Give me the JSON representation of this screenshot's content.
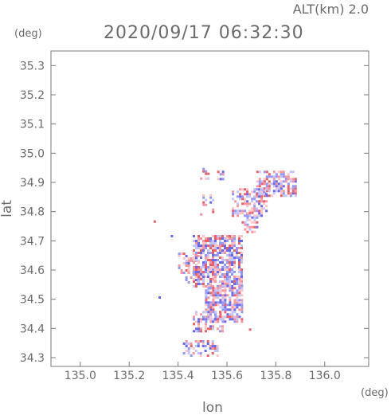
{
  "header": {
    "altitude_label": "ALT(km) 2.0",
    "timestamp": "2020/09/17 06:32:30"
  },
  "chart_data": {
    "type": "heatmap",
    "title": "2020/09/17 06:32:30",
    "xlabel": "lon",
    "ylabel": "lat",
    "x_unit": "(deg)",
    "y_unit": "(deg)",
    "xlim": [
      134.88,
      136.18
    ],
    "ylim": [
      34.27,
      35.35
    ],
    "x_ticks": [
      135.0,
      135.2,
      135.4,
      135.6,
      135.8,
      136.0
    ],
    "x_tick_labels": [
      "135.0",
      "135.2",
      "135.4",
      "135.6",
      "135.8",
      "136.0"
    ],
    "y_ticks": [
      34.3,
      34.4,
      34.5,
      34.6,
      34.7,
      34.8,
      34.9,
      35.0,
      35.1,
      35.2,
      35.3
    ],
    "y_tick_labels": [
      "34.3",
      "34.4",
      "34.5",
      "34.6",
      "34.7",
      "34.8",
      "34.9",
      "35.0",
      "35.1",
      "35.2",
      "35.3"
    ],
    "grid": false,
    "colors": {
      "positive": "#e8606a",
      "negative": "#6a6ae8",
      "axis": "#7a7a7a"
    },
    "echo_regions": [
      {
        "lon": [
          135.49,
          135.52
        ],
        "lat": [
          34.91,
          34.95
        ],
        "density": 0.5
      },
      {
        "lon": [
          135.56,
          135.58
        ],
        "lat": [
          34.91,
          34.94
        ],
        "density": 0.5
      },
      {
        "lon": [
          135.72,
          135.88
        ],
        "lat": [
          34.85,
          34.94
        ],
        "density": 0.55
      },
      {
        "lon": [
          135.62,
          135.76
        ],
        "lat": [
          34.79,
          34.88
        ],
        "density": 0.5
      },
      {
        "lon": [
          135.66,
          135.72
        ],
        "lat": [
          34.72,
          34.8
        ],
        "density": 0.4
      },
      {
        "lon": [
          135.49,
          135.54
        ],
        "lat": [
          34.79,
          34.86
        ],
        "density": 0.3
      },
      {
        "lon": [
          135.4,
          135.48
        ],
        "lat": [
          34.56,
          34.66
        ],
        "density": 0.35
      },
      {
        "lon": [
          135.46,
          135.66
        ],
        "lat": [
          34.54,
          34.72
        ],
        "density": 0.75
      },
      {
        "lon": [
          135.51,
          135.66
        ],
        "lat": [
          34.42,
          34.55
        ],
        "density": 0.7
      },
      {
        "lon": [
          135.46,
          135.58
        ],
        "lat": [
          34.39,
          34.46
        ],
        "density": 0.4
      },
      {
        "lon": [
          135.42,
          135.56
        ],
        "lat": [
          34.31,
          34.36
        ],
        "density": 0.4
      }
    ],
    "isolated_echoes": [
      {
        "lon": 135.3,
        "lat": 34.77,
        "sign": 1
      },
      {
        "lon": 135.37,
        "lat": 34.72,
        "sign": -1
      },
      {
        "lon": 135.32,
        "lat": 34.51,
        "sign": -1
      },
      {
        "lon": 135.69,
        "lat": 34.4,
        "sign": 1
      }
    ]
  }
}
